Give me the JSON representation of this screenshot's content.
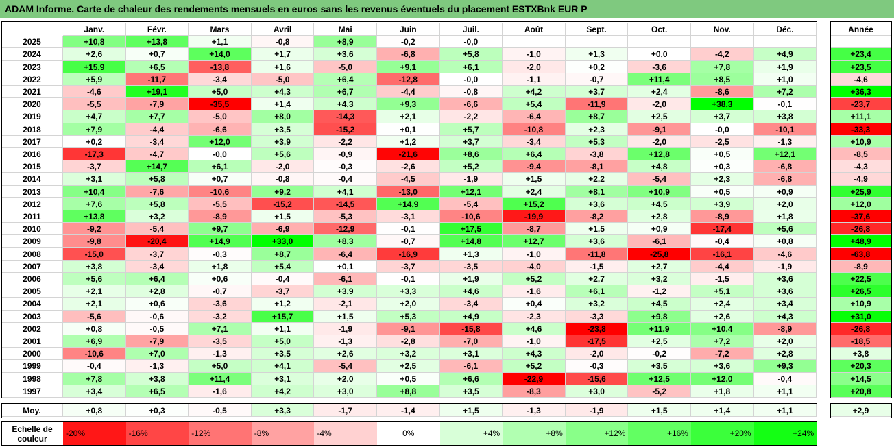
{
  "title": "ADAM Informe. Carte de chaleur des rendements mensuels en euros sans les revenus éventuels du placement ESTXBnk EUR P",
  "chart_data": {
    "type": "heatmap",
    "months": [
      "Janv.",
      "Févr.",
      "Mars",
      "Avril",
      "Mai",
      "Juin",
      "Juil.",
      "Août",
      "Sept.",
      "Oct.",
      "Nov.",
      "Déc."
    ],
    "annual_header": "Année",
    "rows": [
      {
        "year": "2025",
        "months": [
          "+10,8",
          "+13,8",
          "+1,1",
          "-0,8",
          "+8,9",
          "-0,2",
          "-0,0",
          "",
          "",
          "",
          "",
          ""
        ],
        "annual": ""
      },
      {
        "year": "2024",
        "months": [
          "+2,6",
          "+0,7",
          "+14,0",
          "+1,7",
          "+3,6",
          "-6,8",
          "+5,8",
          "-1,0",
          "+1,3",
          "+0,0",
          "-4,2",
          "+4,9"
        ],
        "annual": "+23,4"
      },
      {
        "year": "2023",
        "months": [
          "+15,9",
          "+6,5",
          "-13,8",
          "+1,6",
          "-5,0",
          "+9,1",
          "+6,1",
          "-2,0",
          "+0,2",
          "-3,6",
          "+7,8",
          "+1,9"
        ],
        "annual": "+23,5"
      },
      {
        "year": "2022",
        "months": [
          "+5,9",
          "-11,7",
          "-3,4",
          "-5,0",
          "+6,4",
          "-12,8",
          "-0,0",
          "-1,1",
          "-0,7",
          "+11,4",
          "+8,5",
          "+1,0"
        ],
        "annual": "-4,6"
      },
      {
        "year": "2021",
        "months": [
          "-4,6",
          "+19,1",
          "+5,0",
          "+4,3",
          "+6,7",
          "-4,4",
          "-0,8",
          "+4,2",
          "+3,7",
          "+2,4",
          "-8,6",
          "+7,2"
        ],
        "annual": "+36,3"
      },
      {
        "year": "2020",
        "months": [
          "-5,5",
          "-7,9",
          "-35,5",
          "+1,4",
          "+4,3",
          "+9,3",
          "-6,6",
          "+5,4",
          "-11,9",
          "-2,0",
          "+38,3",
          "-0,1"
        ],
        "annual": "-23,7"
      },
      {
        "year": "2019",
        "months": [
          "+4,7",
          "+7,7",
          "-5,0",
          "+8,0",
          "-14,3",
          "+2,1",
          "-2,2",
          "-6,4",
          "+8,7",
          "+2,5",
          "+3,7",
          "+3,8"
        ],
        "annual": "+11,1"
      },
      {
        "year": "2018",
        "months": [
          "+7,9",
          "-4,4",
          "-6,6",
          "+3,5",
          "-15,2",
          "+0,1",
          "+5,7",
          "-10,8",
          "+2,3",
          "-9,1",
          "-0,0",
          "-10,1"
        ],
        "annual": "-33,3"
      },
      {
        "year": "2017",
        "months": [
          "+0,2",
          "-3,4",
          "+12,0",
          "+3,9",
          "-2,2",
          "+1,2",
          "+3,7",
          "-3,4",
          "+5,3",
          "-2,0",
          "-2,5",
          "-1,3"
        ],
        "annual": "+10,9"
      },
      {
        "year": "2016",
        "months": [
          "-17,3",
          "-4,7",
          "-0,0",
          "+5,6",
          "-0,9",
          "-21,6",
          "+8,6",
          "+6,4",
          "-3,8",
          "+12,8",
          "+0,5",
          "+12,1"
        ],
        "annual": "-8,5"
      },
      {
        "year": "2015",
        "months": [
          "-3,7",
          "+14,7",
          "+6,1",
          "-2,0",
          "-0,3",
          "-2,6",
          "+5,2",
          "-9,4",
          "-8,1",
          "+4,8",
          "+0,3",
          "-6,8"
        ],
        "annual": "-4,3"
      },
      {
        "year": "2014",
        "months": [
          "+3,1",
          "+5,8",
          "+0,7",
          "-0,8",
          "-0,4",
          "-4,5",
          "-1,9",
          "+1,5",
          "+2,2",
          "-5,4",
          "+2,3",
          "-6,8"
        ],
        "annual": "-4,9"
      },
      {
        "year": "2013",
        "months": [
          "+10,4",
          "-7,6",
          "-10,6",
          "+9,2",
          "+4,1",
          "-13,0",
          "+12,1",
          "+2,4",
          "+8,1",
          "+10,9",
          "+0,5",
          "+0,9"
        ],
        "annual": "+25,9"
      },
      {
        "year": "2012",
        "months": [
          "+7,6",
          "+5,8",
          "-5,5",
          "-15,2",
          "-14,5",
          "+14,9",
          "-5,4",
          "+15,2",
          "+3,6",
          "+4,5",
          "+3,9",
          "+2,0"
        ],
        "annual": "+12,0"
      },
      {
        "year": "2011",
        "months": [
          "+13,8",
          "+3,2",
          "-8,9",
          "+1,5",
          "-5,3",
          "-3,1",
          "-10,6",
          "-19,9",
          "-8,2",
          "+2,8",
          "-8,9",
          "+1,8"
        ],
        "annual": "-37,6"
      },
      {
        "year": "2010",
        "months": [
          "-9,2",
          "-5,4",
          "+9,7",
          "-6,9",
          "-12,9",
          "-0,1",
          "+17,5",
          "-8,7",
          "+1,5",
          "+0,9",
          "-17,4",
          "+5,6"
        ],
        "annual": "-26,8"
      },
      {
        "year": "2009",
        "months": [
          "-9,8",
          "-20,4",
          "+14,9",
          "+33,0",
          "+8,3",
          "-0,7",
          "+14,8",
          "+12,7",
          "+3,6",
          "-6,1",
          "-0,4",
          "+0,8"
        ],
        "annual": "+48,9"
      },
      {
        "year": "2008",
        "months": [
          "-15,0",
          "-3,7",
          "-0,3",
          "+8,7",
          "-6,4",
          "-16,9",
          "+1,3",
          "-1,0",
          "-11,8",
          "-25,8",
          "-16,1",
          "-4,6"
        ],
        "annual": "-63,8"
      },
      {
        "year": "2007",
        "months": [
          "+3,8",
          "-3,4",
          "+1,8",
          "+5,4",
          "+0,1",
          "-3,7",
          "-3,5",
          "-4,0",
          "-1,5",
          "+2,7",
          "-4,4",
          "-1,9"
        ],
        "annual": "-8,9"
      },
      {
        "year": "2006",
        "months": [
          "+5,6",
          "+6,4",
          "+0,6",
          "-0,4",
          "-6,1",
          "-0,1",
          "+1,9",
          "+5,2",
          "+2,7",
          "+3,2",
          "-1,5",
          "+3,6"
        ],
        "annual": "+22,5"
      },
      {
        "year": "2005",
        "months": [
          "+2,1",
          "+2,8",
          "-0,7",
          "-3,7",
          "+3,9",
          "+3,3",
          "+4,6",
          "-1,6",
          "+6,1",
          "-1,2",
          "+5,1",
          "+3,6"
        ],
        "annual": "+26,5"
      },
      {
        "year": "2004",
        "months": [
          "+2,1",
          "+0,6",
          "-3,6",
          "+1,2",
          "-2,1",
          "+2,0",
          "-3,4",
          "+0,4",
          "+3,2",
          "+4,5",
          "+2,4",
          "+3,4"
        ],
        "annual": "+10,9"
      },
      {
        "year": "2003",
        "months": [
          "-5,6",
          "-0,6",
          "-3,2",
          "+15,7",
          "+1,5",
          "+5,3",
          "+4,9",
          "-2,3",
          "-3,3",
          "+9,8",
          "+2,6",
          "+4,3"
        ],
        "annual": "+31,0"
      },
      {
        "year": "2002",
        "months": [
          "+0,8",
          "-0,5",
          "+7,1",
          "+1,1",
          "-1,9",
          "-9,1",
          "-15,8",
          "+4,6",
          "-23,8",
          "+11,9",
          "+10,4",
          "-8,9"
        ],
        "annual": "-26,8"
      },
      {
        "year": "2001",
        "months": [
          "+6,9",
          "-7,9",
          "-3,5",
          "+5,0",
          "-1,3",
          "-2,8",
          "-7,0",
          "-1,0",
          "-17,5",
          "+2,5",
          "+7,2",
          "+2,0"
        ],
        "annual": "-18,5"
      },
      {
        "year": "2000",
        "months": [
          "-10,6",
          "+7,0",
          "-1,3",
          "+3,5",
          "+2,6",
          "+3,2",
          "+3,1",
          "+4,3",
          "-2,0",
          "-0,2",
          "-7,2",
          "+2,8"
        ],
        "annual": "+3,8"
      },
      {
        "year": "1999",
        "months": [
          "-0,4",
          "-1,3",
          "+5,0",
          "+4,1",
          "-5,4",
          "+2,5",
          "-6,1",
          "+5,2",
          "-0,3",
          "+3,5",
          "+3,6",
          "+9,3"
        ],
        "annual": "+20,3"
      },
      {
        "year": "1998",
        "months": [
          "+7,8",
          "+3,8",
          "+11,4",
          "+3,1",
          "+2,0",
          "+0,5",
          "+6,6",
          "-22,9",
          "-15,6",
          "+12,5",
          "+12,0",
          "-0,4"
        ],
        "annual": "+14,5"
      },
      {
        "year": "1997",
        "months": [
          "+3,4",
          "+6,5",
          "-1,6",
          "+4,2",
          "+3,0",
          "+8,8",
          "+3,5",
          "-8,3",
          "+3,0",
          "-5,2",
          "+1,8",
          "+1,1"
        ],
        "annual": "+20,8"
      }
    ],
    "average": {
      "label": "Moy.",
      "months": [
        "+0,8",
        "+0,3",
        "-0,5",
        "+3,3",
        "-1,7",
        "-1,4",
        "+1,5",
        "-1,3",
        "-1,9",
        "+1,5",
        "+1,4",
        "+1,1"
      ],
      "annual": "+2,9"
    },
    "color_scale": {
      "label_line1": "Echelle de",
      "label_line2": "couleur",
      "steps": [
        "-20%",
        "-16%",
        "-12%",
        "-8%",
        "-4%",
        "0%",
        "+4%",
        "+8%",
        "+12%",
        "+16%",
        "+20%",
        "+24%"
      ],
      "negative_color": "#ff0000",
      "neutral_color": "#ffffff",
      "positive_color": "#00ff00"
    }
  }
}
